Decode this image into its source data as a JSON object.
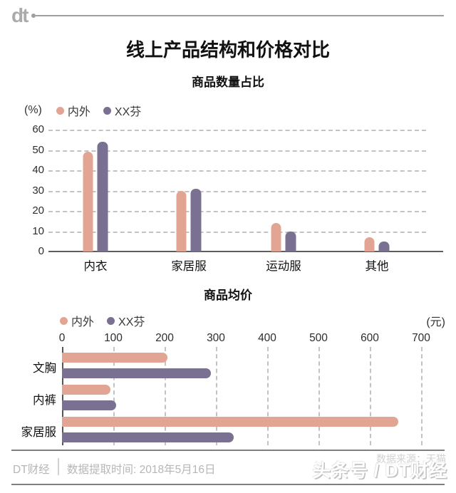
{
  "header": {
    "logo": "dt",
    "title": "线上产品结构和价格对比"
  },
  "chart_data": [
    {
      "type": "bar",
      "title": "商品数量占比",
      "unit": "(%)",
      "categories": [
        "内衣",
        "家居服",
        "运动服",
        "其他"
      ],
      "series": [
        {
          "name": "内外",
          "color": "#E2A593",
          "values": [
            49,
            30,
            14,
            7
          ]
        },
        {
          "name": "XX芬",
          "color": "#7A7092",
          "values": [
            54,
            31,
            10,
            5
          ]
        }
      ],
      "ylim": [
        0,
        60
      ],
      "yticks": [
        0,
        10,
        20,
        30,
        40,
        50,
        60
      ],
      "grid": "dashed-horizontal",
      "legend_position": "top-left"
    },
    {
      "type": "bar-horizontal",
      "title": "商品均价",
      "unit": "(元)",
      "categories": [
        "文胸",
        "内裤",
        "家居服"
      ],
      "series": [
        {
          "name": "内外",
          "color": "#E2A593",
          "values": [
            205,
            95,
            655
          ]
        },
        {
          "name": "XX芬",
          "color": "#7A7092",
          "values": [
            290,
            105,
            335
          ]
        }
      ],
      "xlim": [
        0,
        700
      ],
      "xticks": [
        0,
        100,
        200,
        300,
        400,
        500,
        600,
        700
      ],
      "grid": "dashed-vertical",
      "legend_position": "top-left"
    }
  ],
  "footer": {
    "brand": "DT财经",
    "extract_time": "数据提取时间: 2018年5月16日",
    "source_text": "数据来源：天猫",
    "watermark": "头条号 / DT财经"
  },
  "colors": {
    "series_neiwai": "#E2A593",
    "series_xxfen": "#7A7092",
    "gridline": "#c3c3c3",
    "axis": "#5f5f5f",
    "footer_text": "#b6b6b6"
  }
}
